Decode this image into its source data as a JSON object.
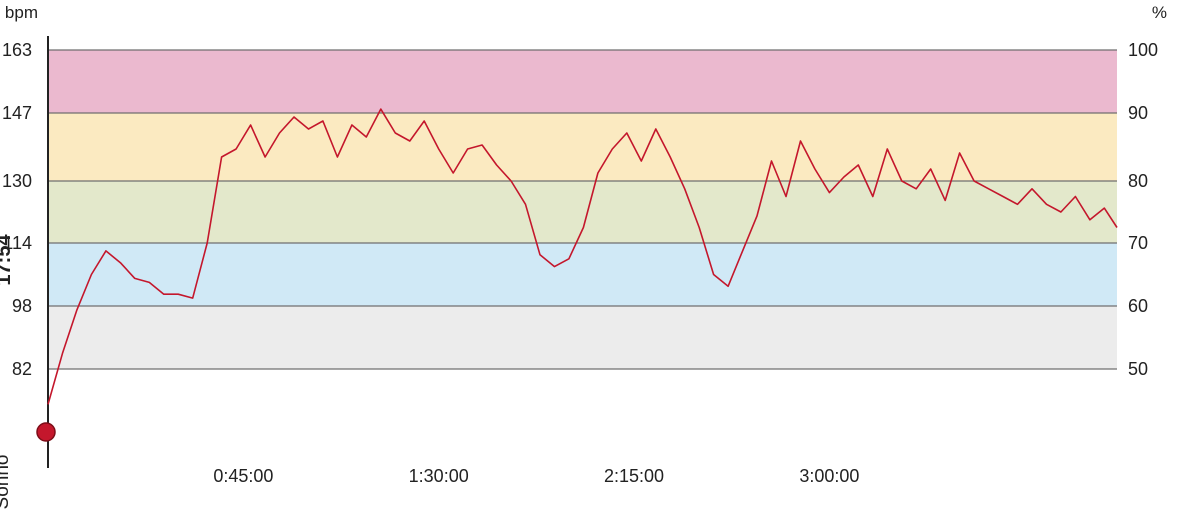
{
  "chart_data": {
    "type": "line",
    "left_unit": "bpm",
    "right_unit": "%",
    "left_ticks": [
      82,
      98,
      114,
      130,
      147,
      163
    ],
    "left_tick_labels": [
      "82",
      "98",
      "114",
      "130",
      "147",
      "163"
    ],
    "right_ticks": [
      50,
      60,
      70,
      80,
      90,
      100
    ],
    "right_tick_labels": [
      "50",
      "60",
      "70",
      "80",
      "90",
      "100"
    ],
    "x_tick_values": [
      2700,
      5400,
      8100,
      10800
    ],
    "x_tick_labels": [
      "0:45:00",
      "1:30:00",
      "2:15:00",
      "3:00:00"
    ],
    "xlim": [
      0,
      14775
    ],
    "ylim": [
      82,
      163
    ],
    "zones": [
      {
        "from": 72,
        "to": 82,
        "color": "#ffffff"
      },
      {
        "from": 82,
        "to": 98,
        "color": "#ececec"
      },
      {
        "from": 98,
        "to": 114,
        "color": "#d0e9f6"
      },
      {
        "from": 114,
        "to": 130,
        "color": "#e3e8cb"
      },
      {
        "from": 130,
        "to": 147,
        "color": "#fbeac1"
      },
      {
        "from": 147,
        "to": 163,
        "color": "#ebb9cf"
      }
    ],
    "line_color": "#c4172c",
    "grid": true,
    "series": [
      {
        "x": [
          0,
          200,
          400,
          600,
          800,
          1000,
          1200,
          1400,
          1600,
          1800,
          2000,
          2200,
          2400,
          2600,
          2800,
          3000,
          3200,
          3400,
          3600,
          3800,
          4000,
          4200,
          4400,
          4600,
          4800,
          5000,
          5200,
          5400,
          5600,
          5800,
          6000,
          6200,
          6400,
          6600,
          6800,
          7000,
          7200,
          7400,
          7600,
          7800,
          8000,
          8200,
          8400,
          8600,
          8800,
          9000,
          9200,
          9400,
          9600,
          9800,
          10000,
          10200,
          10400,
          10600,
          10800,
          11000,
          11200,
          11400,
          11600,
          11800,
          12000,
          12200,
          12400,
          12600,
          12800,
          13000,
          13200,
          13400,
          13600,
          13800,
          14000,
          14200,
          14400,
          14600,
          14775
        ],
        "values": [
          73,
          86,
          97,
          106,
          112,
          109,
          105,
          104,
          101,
          101,
          100,
          114,
          136,
          138,
          144,
          136,
          142,
          146,
          143,
          145,
          136,
          144,
          141,
          148,
          142,
          140,
          145,
          138,
          132,
          138,
          139,
          134,
          130,
          124,
          111,
          108,
          110,
          118,
          132,
          138,
          142,
          135,
          143,
          136,
          128,
          118,
          106,
          103,
          112,
          121,
          135,
          126,
          140,
          133,
          127,
          131,
          134,
          126,
          138,
          130,
          128,
          133,
          125,
          137,
          130,
          128,
          126,
          124,
          128,
          124,
          122,
          126,
          120,
          123,
          118
        ]
      }
    ]
  },
  "side_labels": {
    "strong": "17:54",
    "soft": "Sonno"
  }
}
